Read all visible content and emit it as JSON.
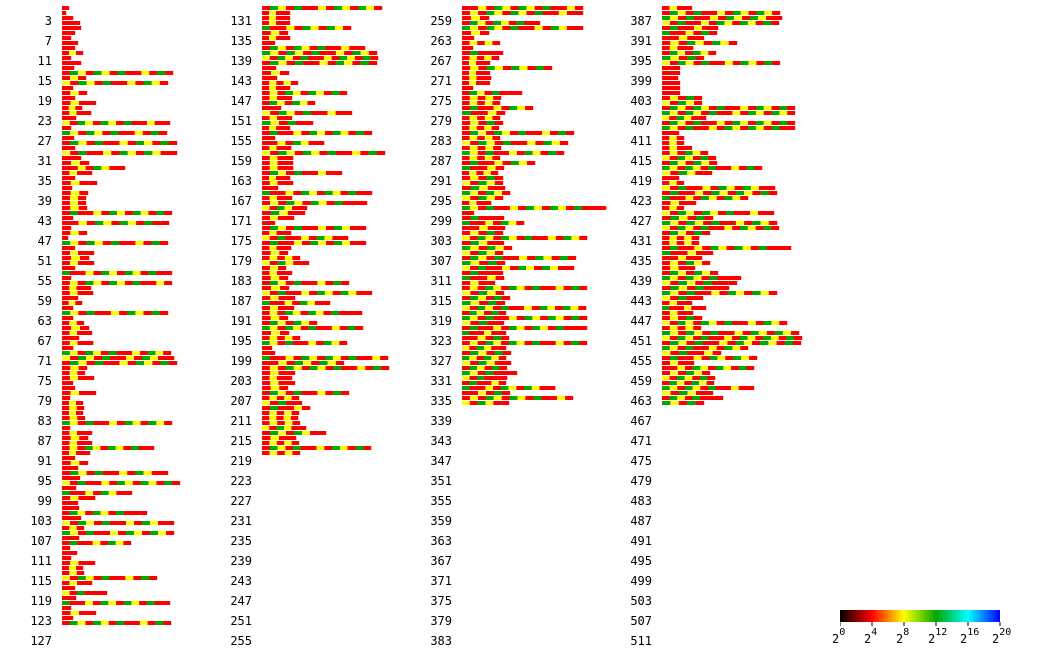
{
  "chart_data": {
    "type": "heatmap",
    "description_rows": "Each visible label marks every 4th row (row index shown); each row is a horizontal strip of 4px sub-rows with log2-scaled color ramp.",
    "column_labels": [
      [
        "3",
        "7",
        "11",
        "15",
        "19",
        "23",
        "27",
        "31",
        "35",
        "39",
        "43",
        "47",
        "51",
        "55",
        "59",
        "63",
        "67",
        "71",
        "75",
        "79",
        "83",
        "87",
        "91",
        "95",
        "99",
        "103",
        "107",
        "111",
        "115",
        "119",
        "123",
        "127"
      ],
      [
        "131",
        "135",
        "139",
        "143",
        "147",
        "151",
        "155",
        "159",
        "163",
        "167",
        "171",
        "175",
        "179",
        "183",
        "187",
        "191",
        "195",
        "199",
        "203",
        "207",
        "211",
        "215",
        "219",
        "223",
        "227",
        "231",
        "235",
        "239",
        "243",
        "247",
        "251",
        "255"
      ],
      [
        "259",
        "263",
        "267",
        "271",
        "275",
        "279",
        "283",
        "287",
        "291",
        "295",
        "299",
        "303",
        "307",
        "311",
        "315",
        "319",
        "323",
        "327",
        "331",
        "335",
        "339",
        "343",
        "347",
        "351",
        "355",
        "359",
        "363",
        "367",
        "371",
        "375",
        "379",
        "383"
      ],
      [
        "387",
        "391",
        "395",
        "399",
        "403",
        "407",
        "411",
        "415",
        "419",
        "423",
        "427",
        "431",
        "435",
        "439",
        "443",
        "447",
        "451",
        "455",
        "459",
        "463",
        "467",
        "471",
        "475",
        "479",
        "483",
        "487",
        "491",
        "495",
        "499",
        "503",
        "507",
        "511"
      ]
    ],
    "row_lengths": [
      [
        7,
        4,
        11,
        18,
        19,
        13,
        9,
        16,
        13,
        21,
        9,
        19,
        12,
        111,
        24,
        106,
        11,
        25,
        13,
        34,
        20,
        29,
        14,
        108,
        9,
        105,
        12,
        115,
        13,
        115,
        19,
        27,
        63,
        30,
        13,
        35,
        10,
        26,
        24,
        24,
        25,
        110,
        11,
        107,
        9,
        25,
        6,
        106,
        13,
        32,
        27,
        32,
        13,
        110,
        9,
        110,
        29,
        31,
        16,
        20,
        11,
        106,
        11,
        22,
        27,
        30,
        17,
        31,
        11,
        109,
        112,
        115,
        25,
        23,
        32,
        11,
        13,
        34,
        8,
        21,
        22,
        21,
        23,
        110,
        8,
        30,
        26,
        30,
        92,
        28,
        13,
        26,
        16,
        106,
        18,
        118,
        14,
        70,
        33,
        16,
        17,
        85,
        19,
        112,
        22,
        112,
        17,
        69,
        8,
        15,
        9,
        33,
        21,
        22,
        95,
        30,
        13,
        45,
        14,
        108,
        9,
        34,
        11,
        109
      ],
      [
        120,
        28,
        28,
        28,
        89,
        26,
        28,
        13,
        103,
        115,
        116,
        115,
        14,
        27,
        15,
        36,
        28,
        85,
        30,
        53,
        19,
        90,
        30,
        51,
        28,
        110,
        13,
        62,
        29,
        123,
        31,
        31,
        31,
        80,
        28,
        31,
        16,
        110,
        30,
        105,
        45,
        43,
        32,
        13,
        104,
        29,
        86,
        104,
        29,
        26,
        38,
        47,
        24,
        30,
        26,
        87,
        27,
        110,
        33,
        68,
        32,
        100,
        26,
        55,
        101,
        27,
        38,
        85,
        10,
        13,
        126,
        82,
        127,
        33,
        30,
        33,
        26,
        87,
        37,
        40,
        48,
        37,
        36,
        38,
        44,
        64,
        34,
        37,
        109,
        38
      ],
      [
        121,
        121,
        27,
        78,
        121,
        27,
        12,
        38,
        11,
        41,
        37,
        28,
        90,
        28,
        29,
        28,
        11,
        60,
        39,
        38,
        71,
        43,
        38,
        41,
        37,
        112,
        38,
        106,
        39,
        102,
        38,
        73,
        42,
        36,
        41,
        41,
        43,
        48,
        41,
        29,
        144,
        12,
        42,
        62,
        43,
        41,
        125,
        42,
        50,
        41,
        114,
        43,
        112,
        41,
        42,
        33,
        125,
        42,
        48,
        43,
        124,
        44,
        125,
        42,
        125,
        44,
        47,
        125,
        44,
        49,
        44,
        49,
        45,
        55,
        45,
        44,
        93,
        48,
        111,
        47
      ],
      [
        30,
        118,
        120,
        117,
        56,
        55,
        42,
        75,
        31,
        54,
        42,
        118,
        18,
        18,
        16,
        18,
        18,
        18,
        40,
        40,
        133,
        133,
        44,
        133,
        133,
        17,
        22,
        22,
        30,
        46,
        54,
        55,
        100,
        50,
        17,
        22,
        113,
        115,
        86,
        34,
        22,
        112,
        51,
        115,
        117,
        48,
        37,
        37,
        129,
        51,
        40,
        48,
        33,
        56,
        79,
        75,
        67,
        115,
        41,
        30,
        44,
        31,
        40,
        125,
        39,
        137,
        140,
        139,
        86,
        59,
        95,
        32,
        92,
        48,
        53,
        52,
        92,
        51,
        61,
        42
      ]
    ]
  },
  "colorbar": {
    "stops": [
      "#000000",
      "#ff0000",
      "#ffff00",
      "#00aa00",
      "#00ffff",
      "#0000ff"
    ],
    "labels": [
      {
        "base": "2",
        "exp": "0"
      },
      {
        "base": "2",
        "exp": "4"
      },
      {
        "base": "2",
        "exp": "8"
      },
      {
        "base": "2",
        "exp": "12"
      },
      {
        "base": "2",
        "exp": "16"
      },
      {
        "base": "2",
        "exp": "20"
      }
    ]
  }
}
